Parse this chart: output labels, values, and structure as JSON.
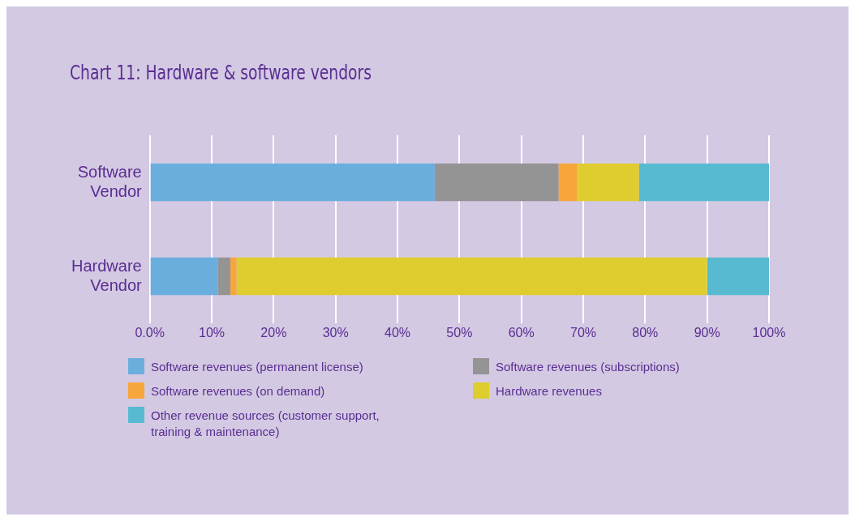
{
  "chart_data": {
    "type": "bar",
    "title": "Chart 11: Hardware & software vendors",
    "orientation": "horizontal",
    "stacked": true,
    "categories": [
      "Software Vendor",
      "Hardware Vendor"
    ],
    "series": [
      {
        "name": "Software revenues (permanent license)",
        "color": "#6aaede",
        "values": [
          46,
          11
        ]
      },
      {
        "name": "Software revenues (subscriptions)",
        "color": "#949494",
        "values": [
          20,
          2
        ]
      },
      {
        "name": "Software revenues (on demand)",
        "color": "#f7a63c",
        "values": [
          3,
          1
        ]
      },
      {
        "name": "Hardware revenues",
        "color": "#dfcd2f",
        "values": [
          10,
          76
        ]
      },
      {
        "name": "Other revenue sources (customer support, training & maintenance)",
        "color": "#58bad0",
        "values": [
          21,
          10
        ]
      }
    ],
    "xlim": [
      0,
      100
    ],
    "xticks": [
      {
        "value": 0,
        "label": "0.0%"
      },
      {
        "value": 10,
        "label": "10%"
      },
      {
        "value": 20,
        "label": "20%"
      },
      {
        "value": 30,
        "label": "30%"
      },
      {
        "value": 40,
        "label": "40%"
      },
      {
        "value": 50,
        "label": "50%"
      },
      {
        "value": 60,
        "label": "60%"
      },
      {
        "value": 70,
        "label": "70%"
      },
      {
        "value": 80,
        "label": "80%"
      },
      {
        "value": 90,
        "label": "90%"
      },
      {
        "value": 100,
        "label": "100%"
      }
    ],
    "grid": "x",
    "legend": "bottom"
  }
}
